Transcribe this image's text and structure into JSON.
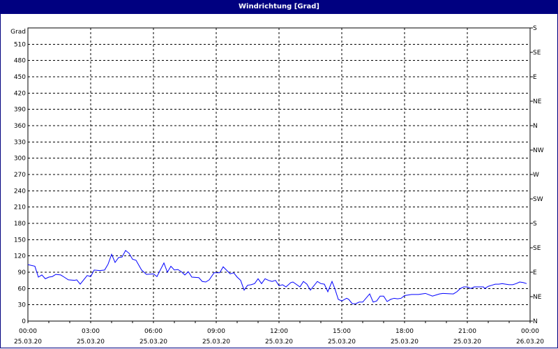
{
  "window": {
    "title": "Windrichtung [Grad]"
  },
  "colors": {
    "titlebar": "#000080",
    "series": "#0000ff",
    "grid": "#000000"
  },
  "chart_data": {
    "type": "line",
    "title": "Windrichtung [Grad]",
    "ylabel": "Grad",
    "ylim": [
      0,
      540
    ],
    "yticks": [
      0,
      30,
      60,
      90,
      120,
      150,
      180,
      210,
      240,
      270,
      300,
      330,
      360,
      390,
      420,
      450,
      480,
      510
    ],
    "y2ticks": [
      {
        "value": 0,
        "label": "N"
      },
      {
        "value": 45,
        "label": "NE"
      },
      {
        "value": 90,
        "label": "E"
      },
      {
        "value": 135,
        "label": "SE"
      },
      {
        "value": 180,
        "label": "S"
      },
      {
        "value": 225,
        "label": "SW"
      },
      {
        "value": 270,
        "label": "W"
      },
      {
        "value": 315,
        "label": "NW"
      },
      {
        "value": 360,
        "label": "N"
      },
      {
        "value": 405,
        "label": "NE"
      },
      {
        "value": 450,
        "label": "E"
      },
      {
        "value": 495,
        "label": "SE"
      },
      {
        "value": 540,
        "label": "S"
      }
    ],
    "xrange": [
      "25.03.20 00:00",
      "26.03.20 00:00"
    ],
    "xticks": [
      {
        "time": "00:00",
        "date": "25.03.20"
      },
      {
        "time": "03:00",
        "date": "25.03.20"
      },
      {
        "time": "06:00",
        "date": "25.03.20"
      },
      {
        "time": "09:00",
        "date": "25.03.20"
      },
      {
        "time": "12:00",
        "date": "25.03.20"
      },
      {
        "time": "15:00",
        "date": "25.03.20"
      },
      {
        "time": "18:00",
        "date": "25.03.20"
      },
      {
        "time": "21:00",
        "date": "25.03.20"
      },
      {
        "time": "00:00",
        "date": "26.03.20"
      }
    ],
    "grid": true,
    "series": [
      {
        "points": [
          [
            "00:00",
            104
          ],
          [
            "00:20",
            101
          ],
          [
            "00:30",
            81
          ],
          [
            "00:40",
            85
          ],
          [
            "00:50",
            78
          ],
          [
            "01:00",
            81
          ],
          [
            "01:10",
            82
          ],
          [
            "01:20",
            86
          ],
          [
            "01:34",
            85
          ],
          [
            "01:44",
            81
          ],
          [
            "01:56",
            76
          ],
          [
            "02:14",
            75
          ],
          [
            "02:20",
            76
          ],
          [
            "02:30",
            68
          ],
          [
            "02:50",
            84
          ],
          [
            "03:00",
            82
          ],
          [
            "03:10",
            94
          ],
          [
            "03:26",
            93
          ],
          [
            "03:40",
            94
          ],
          [
            "03:50",
            105
          ],
          [
            "04:00",
            123
          ],
          [
            "04:10",
            108
          ],
          [
            "04:20",
            117
          ],
          [
            "04:30",
            118
          ],
          [
            "04:40",
            130
          ],
          [
            "04:50",
            125
          ],
          [
            "05:00",
            114
          ],
          [
            "05:10",
            112
          ],
          [
            "05:26",
            94
          ],
          [
            "05:40",
            86
          ],
          [
            "06:00",
            87
          ],
          [
            "06:10",
            82
          ],
          [
            "06:30",
            107
          ],
          [
            "06:40",
            90
          ],
          [
            "06:50",
            101
          ],
          [
            "07:00",
            94
          ],
          [
            "07:10",
            95
          ],
          [
            "07:20",
            91
          ],
          [
            "07:30",
            85
          ],
          [
            "07:40",
            91
          ],
          [
            "07:50",
            81
          ],
          [
            "08:10",
            80
          ],
          [
            "08:20",
            73
          ],
          [
            "08:30",
            72
          ],
          [
            "08:40",
            76
          ],
          [
            "08:54",
            89
          ],
          [
            "09:10",
            89
          ],
          [
            "09:20",
            100
          ],
          [
            "09:40",
            87
          ],
          [
            "09:50",
            89
          ],
          [
            "10:00",
            81
          ],
          [
            "10:10",
            75
          ],
          [
            "10:20",
            57
          ],
          [
            "10:30",
            66
          ],
          [
            "10:40",
            67
          ],
          [
            "10:50",
            69
          ],
          [
            "11:00",
            78
          ],
          [
            "11:10",
            69
          ],
          [
            "11:20",
            78
          ],
          [
            "11:30",
            75
          ],
          [
            "11:40",
            73
          ],
          [
            "11:50",
            75
          ],
          [
            "12:00",
            65
          ],
          [
            "12:10",
            67
          ],
          [
            "12:20",
            63
          ],
          [
            "12:34",
            71
          ],
          [
            "12:40",
            72
          ],
          [
            "13:00",
            63
          ],
          [
            "13:10",
            73
          ],
          [
            "13:20",
            68
          ],
          [
            "13:30",
            57
          ],
          [
            "13:50",
            73
          ],
          [
            "14:00",
            69
          ],
          [
            "14:10",
            68
          ],
          [
            "14:20",
            54
          ],
          [
            "14:32",
            73
          ],
          [
            "14:40",
            60
          ],
          [
            "14:50",
            40
          ],
          [
            "15:00",
            37
          ],
          [
            "15:14",
            42
          ],
          [
            "15:20",
            40
          ],
          [
            "15:30",
            32
          ],
          [
            "15:40",
            32
          ],
          [
            "15:50",
            35
          ],
          [
            "16:00",
            35
          ],
          [
            "16:20",
            50
          ],
          [
            "16:30",
            35
          ],
          [
            "16:40",
            37
          ],
          [
            "16:50",
            46
          ],
          [
            "17:00",
            46
          ],
          [
            "17:10",
            36
          ],
          [
            "17:20",
            40
          ],
          [
            "17:30",
            42
          ],
          [
            "17:40",
            41
          ],
          [
            "17:50",
            42
          ],
          [
            "18:00",
            47
          ],
          [
            "18:20",
            49
          ],
          [
            "18:40",
            49
          ],
          [
            "19:00",
            51
          ],
          [
            "19:20",
            46
          ],
          [
            "19:40",
            50
          ],
          [
            "19:50",
            51
          ],
          [
            "20:20",
            50
          ],
          [
            "20:30",
            54
          ],
          [
            "20:40",
            60
          ],
          [
            "20:50",
            63
          ],
          [
            "21:00",
            63
          ],
          [
            "21:10",
            60
          ],
          [
            "21:20",
            63
          ],
          [
            "21:46",
            63
          ],
          [
            "21:50",
            60
          ],
          [
            "22:00",
            64
          ],
          [
            "22:10",
            66
          ],
          [
            "22:20",
            68
          ],
          [
            "22:30",
            68
          ],
          [
            "22:40",
            69
          ],
          [
            "23:00",
            67
          ],
          [
            "23:10",
            67
          ],
          [
            "23:20",
            69
          ],
          [
            "23:30",
            72
          ],
          [
            "23:40",
            71
          ],
          [
            "23:50",
            69
          ]
        ]
      }
    ]
  }
}
